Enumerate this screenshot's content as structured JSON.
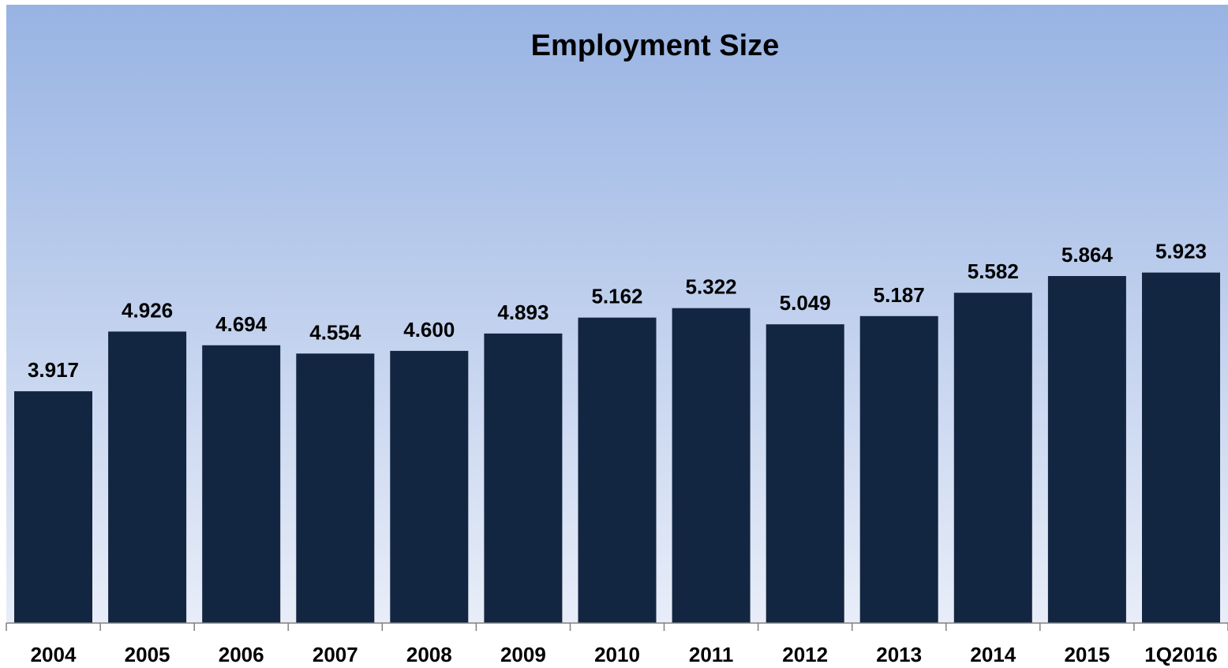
{
  "colors": {
    "bar": "#132641",
    "plot_gradient_top": "#98b3e3",
    "plot_gradient_bottom": "#e8edf8",
    "axis": "#808080"
  },
  "chart_data": {
    "type": "bar",
    "title": "Employment Size",
    "xlabel": "",
    "ylabel": "",
    "categories": [
      "2004",
      "2005",
      "2006",
      "2007",
      "2008",
      "2009",
      "2010",
      "2011",
      "2012",
      "2013",
      "2014",
      "2015",
      "1Q2016"
    ],
    "values": [
      3.917,
      4.926,
      4.694,
      4.554,
      4.6,
      4.893,
      5.162,
      5.322,
      5.049,
      5.187,
      5.582,
      5.864,
      5.923
    ],
    "data_labels": [
      "3.917",
      "4.926",
      "4.694",
      "4.554",
      "4.600",
      "4.893",
      "5.162",
      "5.322",
      "5.049",
      "5.187",
      "5.582",
      "5.864",
      "5.923"
    ],
    "ylim": [
      0,
      7
    ],
    "grid": false,
    "legend": "none"
  }
}
